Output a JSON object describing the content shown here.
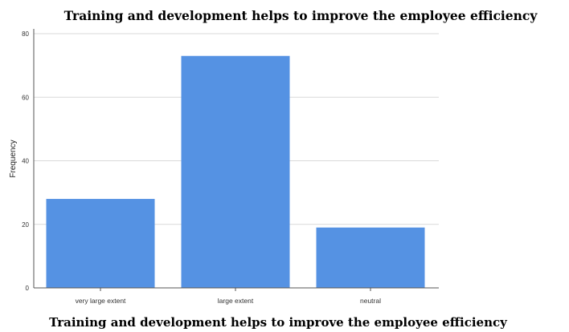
{
  "chart_data": {
    "type": "bar",
    "title": "Training and development helps to improve the employee efficiency",
    "xlabel": "Training and development helps to improve the employee efficiency",
    "ylabel": "Frequency",
    "categories": [
      "very large extent",
      "large extent",
      "neutral"
    ],
    "values": [
      28,
      73,
      19
    ],
    "ylim": [
      0,
      80
    ],
    "yticks": [
      "0",
      "20",
      "40",
      "60",
      "80"
    ],
    "grid": true,
    "bar_color": "#5592e3"
  }
}
